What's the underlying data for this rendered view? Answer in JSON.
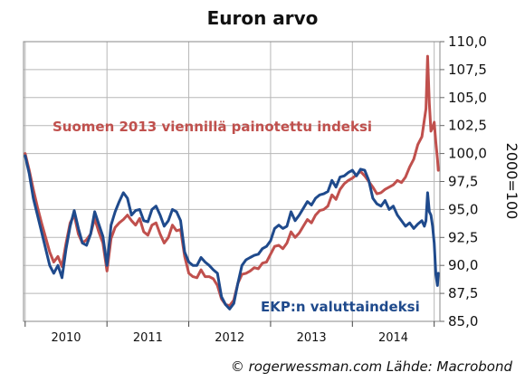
{
  "chart_data": {
    "type": "line",
    "title": "Euron arvo",
    "ylabel": "2000=100",
    "source": "© rogerwessman.com Lähde: Macrobond",
    "ylim": [
      85,
      110
    ],
    "yticks": [
      "85,0",
      "87,5",
      "90,0",
      "92,5",
      "95,0",
      "97,5",
      "100,0",
      "102,5",
      "105,0",
      "107,5",
      "110,0"
    ],
    "ytick_values": [
      85,
      87.5,
      90,
      92.5,
      95,
      97.5,
      100,
      102.5,
      105,
      107.5,
      110
    ],
    "xlim": [
      2009.98,
      2015.07
    ],
    "xticks": [
      "2010",
      "2011",
      "2012",
      "2013",
      "2014"
    ],
    "grid": true,
    "series": [
      {
        "name": "Suomen 2013 viennillä painotettu indeksi",
        "color": "#c0504d",
        "x": [
          2010.0,
          2010.05,
          2010.1,
          2010.15,
          2010.2,
          2010.25,
          2010.3,
          2010.35,
          2010.4,
          2010.45,
          2010.5,
          2010.55,
          2010.6,
          2010.65,
          2010.7,
          2010.75,
          2010.8,
          2010.85,
          2010.9,
          2010.95,
          2011.0,
          2011.05,
          2011.1,
          2011.15,
          2011.2,
          2011.25,
          2011.3,
          2011.35,
          2011.4,
          2011.45,
          2011.5,
          2011.55,
          2011.6,
          2011.65,
          2011.7,
          2011.75,
          2011.8,
          2011.85,
          2011.9,
          2011.95,
          2012.0,
          2012.05,
          2012.1,
          2012.15,
          2012.2,
          2012.25,
          2012.3,
          2012.35,
          2012.4,
          2012.45,
          2012.5,
          2012.55,
          2012.6,
          2012.65,
          2012.7,
          2012.75,
          2012.8,
          2012.85,
          2012.9,
          2012.95,
          2013.0,
          2013.05,
          2013.1,
          2013.15,
          2013.2,
          2013.25,
          2013.3,
          2013.35,
          2013.4,
          2013.45,
          2013.5,
          2013.55,
          2013.6,
          2013.65,
          2013.7,
          2013.75,
          2013.8,
          2013.85,
          2013.9,
          2013.95,
          2014.0,
          2014.05,
          2014.1,
          2014.15,
          2014.2,
          2014.25,
          2014.3,
          2014.35,
          2014.4,
          2014.45,
          2014.5,
          2014.55,
          2014.6,
          2014.65,
          2014.7,
          2014.75,
          2014.8,
          2014.85,
          2014.88,
          2014.9,
          2014.92,
          2014.94,
          2014.96,
          2014.98,
          2015.0,
          2015.02,
          2015.04,
          2015.05
        ],
        "values": [
          100.0,
          98.5,
          96.8,
          95.2,
          93.8,
          92.5,
          91.2,
          90.3,
          90.8,
          89.9,
          92.0,
          93.8,
          94.5,
          92.8,
          92.0,
          92.3,
          92.8,
          94.2,
          93.0,
          92.0,
          89.5,
          92.4,
          93.4,
          93.8,
          94.1,
          94.5,
          94.0,
          93.6,
          94.2,
          93.0,
          92.7,
          93.6,
          93.8,
          92.8,
          92.0,
          92.5,
          93.6,
          93.1,
          93.2,
          90.8,
          89.3,
          89.0,
          88.9,
          89.6,
          89.0,
          89.0,
          88.8,
          88.2,
          87.0,
          86.5,
          86.4,
          86.9,
          88.4,
          89.2,
          89.3,
          89.5,
          89.8,
          89.7,
          90.2,
          90.3,
          91.0,
          91.7,
          91.8,
          91.5,
          92.0,
          93.0,
          92.5,
          92.9,
          93.5,
          94.1,
          93.8,
          94.5,
          94.9,
          95.0,
          95.3,
          96.3,
          95.9,
          96.8,
          97.3,
          97.6,
          97.8,
          98.1,
          98.4,
          98.0,
          97.5,
          97.0,
          96.4,
          96.5,
          96.8,
          97.0,
          97.2,
          97.6,
          97.4,
          97.9,
          98.8,
          99.5,
          100.8,
          101.5,
          103.0,
          104.0,
          108.7,
          104.5,
          102.0,
          102.3,
          102.8,
          101.0,
          99.5,
          98.5
        ]
      },
      {
        "name": "EKP:n valuttaindeksi",
        "color": "#1f4a8c",
        "x": [
          2010.0,
          2010.05,
          2010.1,
          2010.15,
          2010.2,
          2010.25,
          2010.3,
          2010.35,
          2010.4,
          2010.45,
          2010.5,
          2010.55,
          2010.6,
          2010.65,
          2010.7,
          2010.75,
          2010.8,
          2010.85,
          2010.9,
          2010.95,
          2011.0,
          2011.05,
          2011.1,
          2011.15,
          2011.2,
          2011.25,
          2011.3,
          2011.35,
          2011.4,
          2011.45,
          2011.5,
          2011.55,
          2011.6,
          2011.65,
          2011.7,
          2011.75,
          2011.8,
          2011.85,
          2011.9,
          2011.95,
          2012.0,
          2012.05,
          2012.1,
          2012.15,
          2012.2,
          2012.25,
          2012.3,
          2012.35,
          2012.4,
          2012.45,
          2012.5,
          2012.55,
          2012.6,
          2012.65,
          2012.7,
          2012.75,
          2012.8,
          2012.85,
          2012.9,
          2012.95,
          2013.0,
          2013.05,
          2013.1,
          2013.15,
          2013.2,
          2013.25,
          2013.3,
          2013.35,
          2013.4,
          2013.45,
          2013.5,
          2013.55,
          2013.6,
          2013.65,
          2013.7,
          2013.75,
          2013.8,
          2013.85,
          2013.9,
          2013.95,
          2014.0,
          2014.05,
          2014.1,
          2014.15,
          2014.2,
          2014.25,
          2014.3,
          2014.35,
          2014.4,
          2014.45,
          2014.5,
          2014.55,
          2014.6,
          2014.65,
          2014.7,
          2014.75,
          2014.8,
          2014.85,
          2014.88,
          2014.9,
          2014.92,
          2014.94,
          2014.96,
          2014.98,
          2015.0,
          2015.02,
          2015.04,
          2015.05
        ],
        "values": [
          99.8,
          98.2,
          96.0,
          94.5,
          93.0,
          91.5,
          90.0,
          89.3,
          90.0,
          88.9,
          91.5,
          93.5,
          94.9,
          93.3,
          92.0,
          91.8,
          92.8,
          94.8,
          93.7,
          92.6,
          90.0,
          93.6,
          94.8,
          95.7,
          96.5,
          96.0,
          94.5,
          94.9,
          95.0,
          94.0,
          93.9,
          95.0,
          95.3,
          94.5,
          93.5,
          94.0,
          95.0,
          94.8,
          94.0,
          91.2,
          90.3,
          90.0,
          90.0,
          90.7,
          90.3,
          90.0,
          89.6,
          89.3,
          87.2,
          86.5,
          86.1,
          86.6,
          88.4,
          90.0,
          90.5,
          90.7,
          90.9,
          91.0,
          91.5,
          91.7,
          92.2,
          93.3,
          93.6,
          93.3,
          93.5,
          94.8,
          94.0,
          94.5,
          95.1,
          95.7,
          95.4,
          96.0,
          96.3,
          96.4,
          96.6,
          97.6,
          97.0,
          97.9,
          98.0,
          98.3,
          98.5,
          98.0,
          98.6,
          98.5,
          97.6,
          96.0,
          95.5,
          95.3,
          95.8,
          95.0,
          95.3,
          94.5,
          94.0,
          93.5,
          93.8,
          93.3,
          93.7,
          94.0,
          93.5,
          94.0,
          96.5,
          94.8,
          94.5,
          93.5,
          92.0,
          89.2,
          88.2,
          89.3
        ]
      }
    ]
  }
}
